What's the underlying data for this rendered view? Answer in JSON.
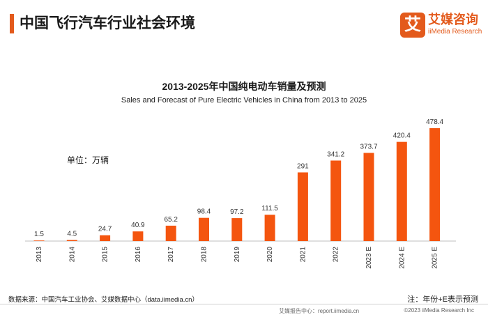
{
  "header": {
    "title": "中国飞行汽车行业社会环境"
  },
  "logo": {
    "badge": "艾",
    "cn": "艾媒咨询",
    "en": "iiMedia Research"
  },
  "unit": "单位：万辆",
  "chart_data": {
    "type": "bar",
    "title": "2013-2025年中国纯电动车销量及预测",
    "subtitle": "Sales and Forecast of Pure Electric Vehicles in China from 2013 to 2025",
    "categories": [
      "2013",
      "2014",
      "2015",
      "2016",
      "2017",
      "2018",
      "2019",
      "2020",
      "2021",
      "2022",
      "2023 E",
      "2024 E",
      "2025 E"
    ],
    "values": [
      1.5,
      4.5,
      24.7,
      40.9,
      65.2,
      98.4,
      97.2,
      111.5,
      291,
      341.2,
      373.7,
      420.4,
      478.4
    ],
    "labels": [
      "1.5",
      "4.5",
      "24.7",
      "40.9",
      "65.2",
      "98.4",
      "97.2",
      "111.5",
      "291",
      "341.2",
      "373.7",
      "420.4",
      "478.4"
    ],
    "ylabel": "万辆",
    "ylim": [
      0,
      478.4
    ],
    "grid": false,
    "legend": "none"
  },
  "colors": {
    "accent": "#e35a1c",
    "bar": "#f4550f"
  },
  "source": "数据来源：中国汽车工业协会、艾媒数据中心（data.iimedia.cn）",
  "note": "注：年份+E表示预测",
  "footer": {
    "left": "艾媒报告中心：report.iimedia.cn",
    "right": "©2023  iiMedia Research  Inc"
  }
}
